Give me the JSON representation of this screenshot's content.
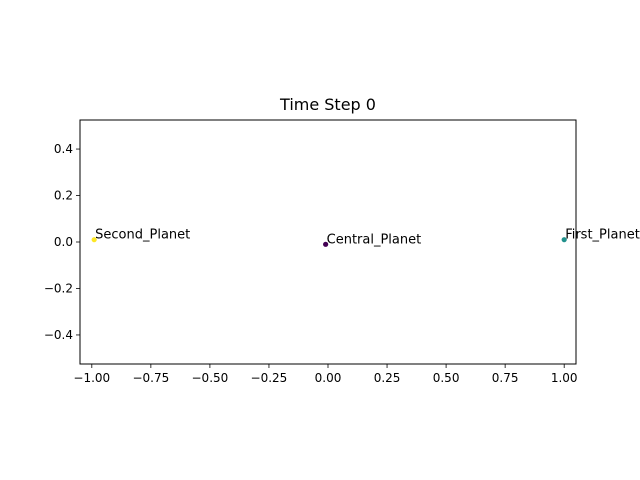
{
  "chart_data": {
    "type": "scatter",
    "title": "Time Step 0",
    "xlabel": "",
    "ylabel": "",
    "xlim": [
      -1.05,
      1.05
    ],
    "ylim": [
      -0.525,
      0.525
    ],
    "grid": false,
    "x_ticks": [
      -1.0,
      -0.75,
      -0.5,
      -0.25,
      0.0,
      0.25,
      0.5,
      0.75,
      1.0
    ],
    "x_tick_labels": [
      "−1.00",
      "−0.75",
      "−0.50",
      "−0.25",
      "0.00",
      "0.25",
      "0.50",
      "0.75",
      "1.00"
    ],
    "y_ticks": [
      0.4,
      0.2,
      0.0,
      -0.2,
      -0.4
    ],
    "y_tick_labels": [
      "0.4",
      "0.2",
      "0.0",
      "−0.2",
      "−0.4"
    ],
    "points": [
      {
        "label": "Central_Planet",
        "x": -0.01,
        "y": -0.01,
        "color": "#440154"
      },
      {
        "label": "First_Planet",
        "x": 1.0,
        "y": 0.01,
        "color": "#21918c"
      },
      {
        "label": "Second_Planet",
        "x": -0.99,
        "y": 0.01,
        "color": "#fde725"
      }
    ]
  }
}
